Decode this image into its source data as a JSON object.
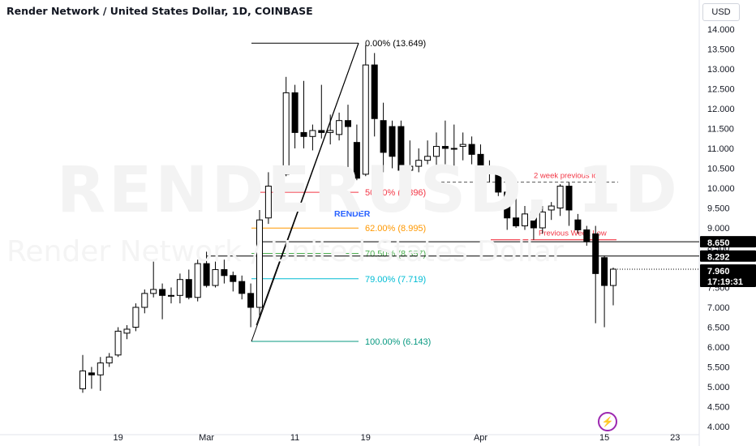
{
  "header": {
    "title": "Render Network / United States Dollar, 1D, COINBASE",
    "currency": "USD"
  },
  "watermark": {
    "symbol": "RENDERUSD, 1D",
    "name": "Render Network / United States Dollar"
  },
  "colors": {
    "candle_up": "#ffffff",
    "candle_down": "#000000",
    "candle_border": "#000000",
    "fib_0": "#000000",
    "fib_50": "#f23645",
    "fib_62": "#ff9800",
    "fib_705": "#4caf50",
    "fib_79": "#00bcd4",
    "fib_100": "#089981",
    "support_red": "#f23645",
    "render_label": "#2962ff",
    "logo": "#9c27b0"
  },
  "chart_data": {
    "type": "candlestick",
    "title": "Render Network / United States Dollar, 1D, COINBASE",
    "ylim": [
      4.0,
      14.5
    ],
    "y_ticks": [
      "14.000",
      "13.500",
      "13.000",
      "12.500",
      "12.000",
      "11.500",
      "11.000",
      "10.500",
      "10.000",
      "9.500",
      "9.000",
      "8.500",
      "8.000",
      "7.500",
      "7.000",
      "6.500",
      "6.000",
      "5.500",
      "5.000",
      "4.500",
      "4.000"
    ],
    "x_ticks": [
      {
        "label": "19",
        "index": 4
      },
      {
        "label": "Mar",
        "index": 14
      },
      {
        "label": "11",
        "index": 24
      },
      {
        "label": "19",
        "index": 32
      },
      {
        "label": "Apr",
        "index": 45
      },
      {
        "label": "15",
        "index": 59
      },
      {
        "label": "23",
        "index": 67
      }
    ],
    "candles": [
      {
        "o": 4.95,
        "h": 5.8,
        "l": 4.85,
        "c": 5.4
      },
      {
        "o": 5.35,
        "h": 5.5,
        "l": 4.95,
        "c": 5.3
      },
      {
        "o": 5.3,
        "h": 5.75,
        "l": 4.9,
        "c": 5.6
      },
      {
        "o": 5.6,
        "h": 5.85,
        "l": 5.5,
        "c": 5.75
      },
      {
        "o": 5.8,
        "h": 6.5,
        "l": 5.75,
        "c": 6.4
      },
      {
        "o": 6.35,
        "h": 6.55,
        "l": 6.2,
        "c": 6.45
      },
      {
        "o": 6.5,
        "h": 7.1,
        "l": 6.4,
        "c": 7.0
      },
      {
        "o": 7.0,
        "h": 7.45,
        "l": 6.85,
        "c": 7.35
      },
      {
        "o": 7.35,
        "h": 8.15,
        "l": 7.25,
        "c": 7.45
      },
      {
        "o": 7.45,
        "h": 7.6,
        "l": 6.7,
        "c": 7.3
      },
      {
        "o": 7.3,
        "h": 7.5,
        "l": 7.1,
        "c": 7.3
      },
      {
        "o": 7.3,
        "h": 7.85,
        "l": 7.1,
        "c": 7.7
      },
      {
        "o": 7.7,
        "h": 7.95,
        "l": 7.2,
        "c": 7.25
      },
      {
        "o": 7.25,
        "h": 8.2,
        "l": 7.15,
        "c": 8.1
      },
      {
        "o": 8.1,
        "h": 8.4,
        "l": 7.5,
        "c": 7.55
      },
      {
        "o": 7.55,
        "h": 8.15,
        "l": 7.5,
        "c": 7.95
      },
      {
        "o": 7.95,
        "h": 8.2,
        "l": 7.6,
        "c": 7.8
      },
      {
        "o": 7.8,
        "h": 7.9,
        "l": 7.4,
        "c": 7.65
      },
      {
        "o": 7.65,
        "h": 7.8,
        "l": 7.2,
        "c": 7.35
      },
      {
        "o": 7.35,
        "h": 7.6,
        "l": 6.5,
        "c": 7.0
      },
      {
        "o": 7.0,
        "h": 9.45,
        "l": 6.7,
        "c": 9.2
      },
      {
        "o": 9.25,
        "h": 10.4,
        "l": 9.1,
        "c": 10.05
      },
      {
        "o": 10.05,
        "h": 10.45,
        "l": 9.85,
        "c": 10.35
      },
      {
        "o": 10.35,
        "h": 12.8,
        "l": 10.3,
        "c": 12.4
      },
      {
        "o": 12.4,
        "h": 12.6,
        "l": 11.0,
        "c": 11.4
      },
      {
        "o": 11.4,
        "h": 12.7,
        "l": 11.0,
        "c": 11.3
      },
      {
        "o": 11.3,
        "h": 11.6,
        "l": 10.95,
        "c": 11.45
      },
      {
        "o": 11.45,
        "h": 12.6,
        "l": 11.25,
        "c": 11.4
      },
      {
        "o": 11.4,
        "h": 11.85,
        "l": 11.1,
        "c": 11.45
      },
      {
        "o": 11.35,
        "h": 11.9,
        "l": 11.2,
        "c": 11.7
      },
      {
        "o": 11.7,
        "h": 12.1,
        "l": 10.0,
        "c": 11.55
      },
      {
        "o": 11.15,
        "h": 11.6,
        "l": 10.2,
        "c": 10.25
      },
      {
        "o": 10.35,
        "h": 13.6,
        "l": 10.3,
        "c": 13.1
      },
      {
        "o": 13.1,
        "h": 13.4,
        "l": 11.3,
        "c": 11.75
      },
      {
        "o": 11.7,
        "h": 12.15,
        "l": 10.4,
        "c": 10.9
      },
      {
        "o": 11.55,
        "h": 11.7,
        "l": 10.5,
        "c": 10.8
      },
      {
        "o": 11.55,
        "h": 11.7,
        "l": 10.2,
        "c": 10.45
      },
      {
        "o": 10.45,
        "h": 11.2,
        "l": 10.15,
        "c": 10.55
      },
      {
        "o": 10.55,
        "h": 11.0,
        "l": 10.4,
        "c": 10.7
      },
      {
        "o": 10.7,
        "h": 11.2,
        "l": 10.6,
        "c": 10.8
      },
      {
        "o": 10.8,
        "h": 11.4,
        "l": 10.5,
        "c": 11.05
      },
      {
        "o": 11.05,
        "h": 11.7,
        "l": 10.6,
        "c": 11.0
      },
      {
        "o": 11.0,
        "h": 11.6,
        "l": 10.5,
        "c": 11.0
      },
      {
        "o": 11.05,
        "h": 11.4,
        "l": 10.7,
        "c": 11.1
      },
      {
        "o": 11.1,
        "h": 11.3,
        "l": 10.6,
        "c": 10.85
      },
      {
        "o": 10.85,
        "h": 11.1,
        "l": 10.4,
        "c": 10.55
      },
      {
        "o": 10.55,
        "h": 10.7,
        "l": 10.15,
        "c": 10.4
      },
      {
        "o": 10.4,
        "h": 10.55,
        "l": 9.8,
        "c": 9.9
      },
      {
        "o": 9.9,
        "h": 10.1,
        "l": 8.95,
        "c": 9.25
      },
      {
        "o": 9.25,
        "h": 9.75,
        "l": 9.0,
        "c": 9.05
      },
      {
        "o": 9.05,
        "h": 9.55,
        "l": 8.95,
        "c": 9.35
      },
      {
        "o": 9.4,
        "h": 9.5,
        "l": 8.7,
        "c": 9.0
      },
      {
        "o": 9.0,
        "h": 9.55,
        "l": 8.85,
        "c": 9.4
      },
      {
        "o": 9.45,
        "h": 9.65,
        "l": 9.2,
        "c": 9.55
      },
      {
        "o": 9.5,
        "h": 10.1,
        "l": 9.3,
        "c": 10.05
      },
      {
        "o": 10.05,
        "h": 10.15,
        "l": 9.05,
        "c": 9.45
      },
      {
        "o": 9.2,
        "h": 9.35,
        "l": 8.85,
        "c": 8.95
      },
      {
        "o": 8.95,
        "h": 9.05,
        "l": 8.55,
        "c": 8.65
      },
      {
        "o": 8.85,
        "h": 9.05,
        "l": 6.6,
        "c": 7.85
      },
      {
        "o": 8.25,
        "h": 8.3,
        "l": 6.5,
        "c": 7.55
      },
      {
        "o": 7.55,
        "h": 8.0,
        "l": 7.05,
        "c": 7.96
      }
    ],
    "fib": [
      {
        "label": "0.00% (13.649)",
        "value": 13.649,
        "color": "#000000"
      },
      {
        "label": "50.00% (9.896)",
        "value": 9.896,
        "color": "#f23645"
      },
      {
        "label": "62.00% (8.995)",
        "value": 8.995,
        "color": "#ff9800"
      },
      {
        "label": "70.50% (8.357)",
        "value": 8.357,
        "color": "#4caf50"
      },
      {
        "label": "79.00% (7.719)",
        "value": 7.719,
        "color": "#00bcd4"
      },
      {
        "label": "100.00% (6.143)",
        "value": 6.143,
        "color": "#089981"
      }
    ],
    "annotations": {
      "render_label": "RENDER",
      "two_week_low_label": "2 week previous low",
      "two_week_low_value": 10.15,
      "prev_week_low_label": "Previous Week Low",
      "prev_week_low_value": 8.7,
      "level_a": 8.65,
      "level_b": 8.292,
      "level_a_label": "8.650",
      "level_b_label": "8.292",
      "level_c_label": "8.500",
      "current_price_label": "7.960",
      "current_price": 7.96,
      "countdown_label": "17:19:31"
    }
  }
}
